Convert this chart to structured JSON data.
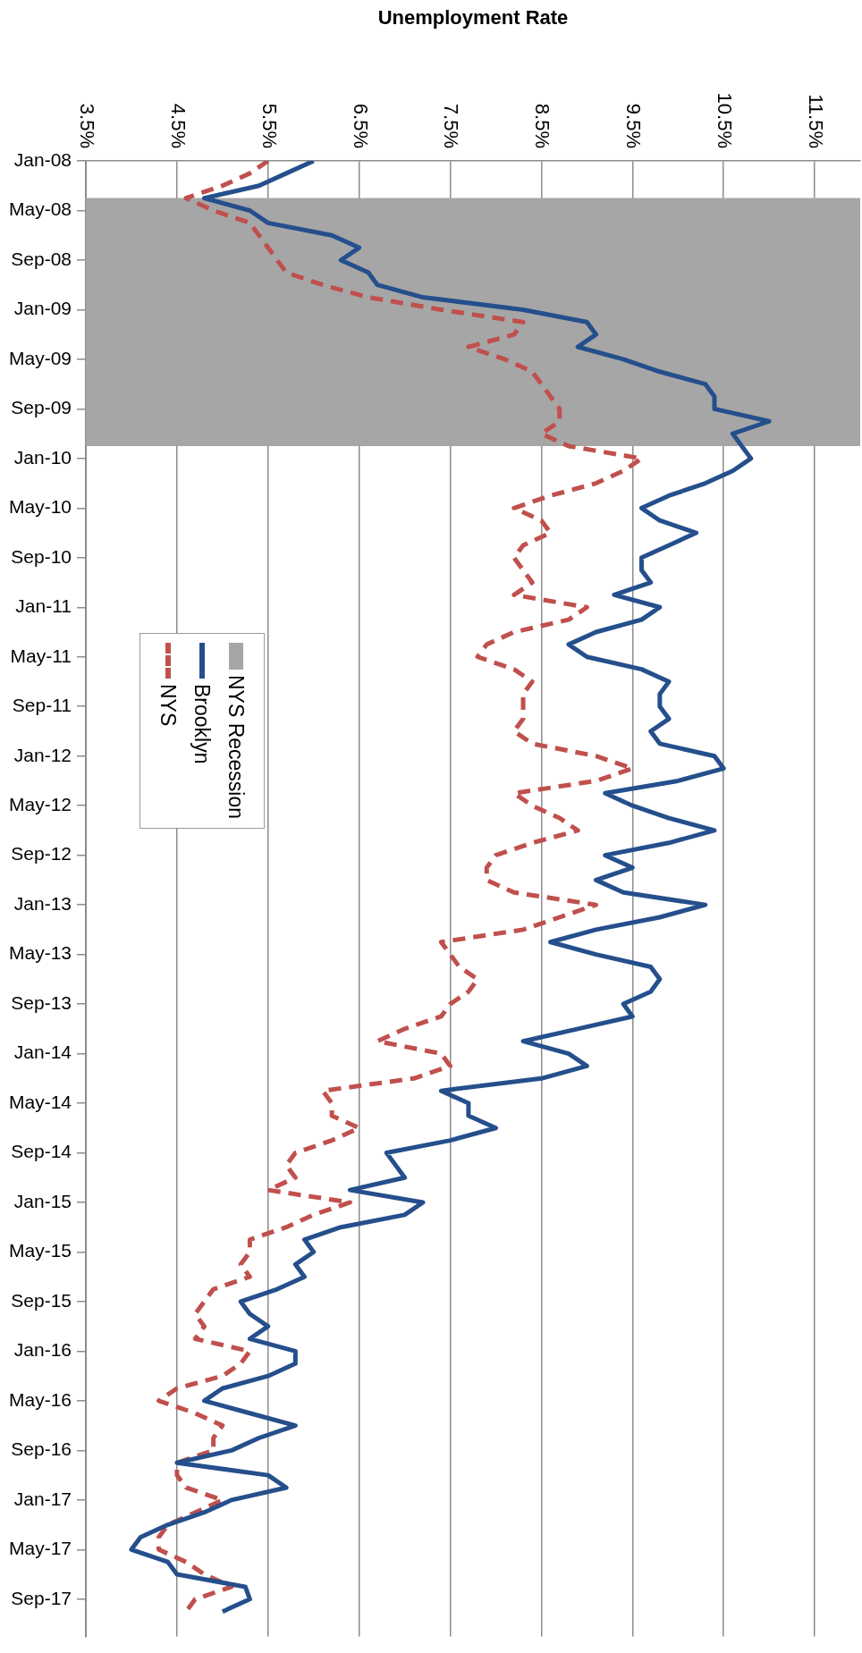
{
  "chart_data": {
    "type": "line",
    "orientation": "horizontal",
    "xlabel": "Unemployment Rate",
    "x": [
      "2008-01",
      "2008-02",
      "2008-03",
      "2008-04",
      "2008-05",
      "2008-06",
      "2008-07",
      "2008-08",
      "2008-09",
      "2008-10",
      "2008-11",
      "2008-12",
      "2009-01",
      "2009-02",
      "2009-03",
      "2009-04",
      "2009-05",
      "2009-06",
      "2009-07",
      "2009-08",
      "2009-09",
      "2009-10",
      "2009-11",
      "2009-12",
      "2010-01",
      "2010-02",
      "2010-03",
      "2010-04",
      "2010-05",
      "2010-06",
      "2010-07",
      "2010-08",
      "2010-09",
      "2010-10",
      "2010-11",
      "2010-12",
      "2011-01",
      "2011-02",
      "2011-03",
      "2011-04",
      "2011-05",
      "2011-06",
      "2011-07",
      "2011-08",
      "2011-09",
      "2011-10",
      "2011-11",
      "2011-12",
      "2012-01",
      "2012-02",
      "2012-03",
      "2012-04",
      "2012-05",
      "2012-06",
      "2012-07",
      "2012-08",
      "2012-09",
      "2012-10",
      "2012-11",
      "2012-12",
      "2013-01",
      "2013-02",
      "2013-03",
      "2013-04",
      "2013-05",
      "2013-06",
      "2013-07",
      "2013-08",
      "2013-09",
      "2013-10",
      "2013-11",
      "2013-12",
      "2014-01",
      "2014-02",
      "2014-03",
      "2014-04",
      "2014-05",
      "2014-06",
      "2014-07",
      "2014-08",
      "2014-09",
      "2014-10",
      "2014-11",
      "2014-12",
      "2015-01",
      "2015-02",
      "2015-03",
      "2015-04",
      "2015-05",
      "2015-06",
      "2015-07",
      "2015-08",
      "2015-09",
      "2015-10",
      "2015-11",
      "2015-12",
      "2016-01",
      "2016-02",
      "2016-03",
      "2016-04",
      "2016-05",
      "2016-06",
      "2016-07",
      "2016-08",
      "2016-09",
      "2016-10",
      "2016-11",
      "2016-12",
      "2017-01",
      "2017-02",
      "2017-03",
      "2017-04",
      "2017-05",
      "2017-06",
      "2017-07",
      "2017-08",
      "2017-09",
      "2017-10"
    ],
    "series": [
      {
        "name": "Brooklyn",
        "color": "#254f8c",
        "line_style": "solid",
        "values": [
          6.0,
          5.7,
          5.4,
          4.8,
          5.3,
          5.5,
          6.2,
          6.5,
          6.3,
          6.6,
          6.7,
          7.2,
          8.3,
          9.0,
          9.1,
          8.9,
          9.4,
          9.8,
          10.3,
          10.4,
          10.4,
          11.0,
          10.6,
          10.7,
          10.8,
          10.6,
          10.3,
          9.9,
          9.6,
          9.8,
          10.2,
          9.9,
          9.6,
          9.6,
          9.7,
          9.3,
          9.8,
          9.6,
          9.1,
          8.8,
          9.0,
          9.6,
          9.9,
          9.8,
          9.8,
          9.9,
          9.7,
          9.8,
          10.4,
          10.5,
          10.0,
          9.2,
          9.5,
          9.9,
          10.4,
          9.9,
          9.2,
          9.5,
          9.1,
          9.4,
          10.3,
          9.8,
          9.1,
          8.6,
          9.1,
          9.7,
          9.8,
          9.7,
          9.4,
          9.5,
          8.9,
          8.3,
          8.8,
          9.0,
          8.5,
          7.4,
          7.7,
          7.7,
          8.0,
          7.5,
          6.8,
          6.9,
          7.0,
          6.4,
          7.2,
          7.0,
          6.3,
          5.9,
          6.0,
          5.8,
          5.9,
          5.6,
          5.2,
          5.3,
          5.5,
          5.3,
          5.8,
          5.8,
          5.5,
          5.0,
          4.8,
          5.3,
          5.8,
          5.4,
          5.1,
          4.5,
          5.5,
          5.7,
          5.1,
          4.8,
          4.4,
          4.1,
          4.0,
          4.4,
          4.5,
          5.25,
          5.3,
          5.0
        ]
      },
      {
        "name": "NYS",
        "color": "#c0504d",
        "line_style": "dashed",
        "values": [
          5.5,
          5.3,
          5.0,
          4.6,
          4.9,
          5.3,
          5.4,
          5.5,
          5.6,
          5.7,
          6.1,
          6.6,
          7.4,
          8.3,
          8.2,
          7.7,
          8.1,
          8.4,
          8.5,
          8.6,
          8.7,
          8.7,
          8.5,
          8.8,
          9.6,
          9.4,
          9.1,
          8.6,
          8.2,
          8.5,
          8.6,
          8.3,
          8.2,
          8.3,
          8.4,
          8.2,
          9.0,
          8.8,
          8.2,
          7.9,
          7.8,
          8.2,
          8.4,
          8.3,
          8.3,
          8.3,
          8.2,
          8.4,
          9.1,
          9.5,
          9.1,
          8.2,
          8.4,
          8.7,
          8.9,
          8.4,
          8.0,
          7.9,
          7.9,
          8.2,
          9.1,
          8.7,
          8.3,
          7.4,
          7.5,
          7.6,
          7.8,
          7.7,
          7.5,
          7.4,
          7.0,
          6.7,
          7.4,
          7.5,
          7.1,
          6.1,
          6.2,
          6.2,
          6.5,
          6.2,
          5.8,
          5.7,
          5.8,
          5.5,
          6.4,
          6.0,
          5.7,
          5.3,
          5.3,
          5.2,
          5.3,
          4.9,
          4.8,
          4.7,
          4.8,
          4.7,
          5.3,
          5.2,
          5.0,
          4.5,
          4.3,
          4.7,
          5.0,
          4.9,
          4.9,
          4.5,
          4.5,
          4.6,
          5.0,
          4.7,
          4.4,
          4.3,
          4.3,
          4.6,
          4.8,
          5.1,
          4.7,
          4.6
        ]
      }
    ],
    "xlim": [
      3.5,
      12.0
    ],
    "xticks": [
      {
        "value": 3.5,
        "label": "3.5%"
      },
      {
        "value": 4.5,
        "label": "4.5%"
      },
      {
        "value": 5.5,
        "label": "5.5%"
      },
      {
        "value": 6.5,
        "label": "6.5%"
      },
      {
        "value": 7.5,
        "label": "7.5%"
      },
      {
        "value": 8.5,
        "label": "8.5%"
      },
      {
        "value": 9.5,
        "label": "9.5%"
      },
      {
        "value": 10.5,
        "label": "10.5%"
      },
      {
        "value": 11.5,
        "label": "11.5%"
      }
    ],
    "ylim": [
      "2017-12",
      "2008-01"
    ],
    "yticks": [
      {
        "value": "2008-01",
        "label": "Jan-08"
      },
      {
        "value": "2008-05",
        "label": "May-08"
      },
      {
        "value": "2008-09",
        "label": "Sep-08"
      },
      {
        "value": "2009-01",
        "label": "Jan-09"
      },
      {
        "value": "2009-05",
        "label": "May-09"
      },
      {
        "value": "2009-09",
        "label": "Sep-09"
      },
      {
        "value": "2010-01",
        "label": "Jan-10"
      },
      {
        "value": "2010-05",
        "label": "May-10"
      },
      {
        "value": "2010-09",
        "label": "Sep-10"
      },
      {
        "value": "2011-01",
        "label": "Jan-11"
      },
      {
        "value": "2011-05",
        "label": "May-11"
      },
      {
        "value": "2011-09",
        "label": "Sep-11"
      },
      {
        "value": "2012-01",
        "label": "Jan-12"
      },
      {
        "value": "2012-05",
        "label": "May-12"
      },
      {
        "value": "2012-09",
        "label": "Sep-12"
      },
      {
        "value": "2013-01",
        "label": "Jan-13"
      },
      {
        "value": "2013-05",
        "label": "May-13"
      },
      {
        "value": "2013-09",
        "label": "Sep-13"
      },
      {
        "value": "2014-01",
        "label": "Jan-14"
      },
      {
        "value": "2014-05",
        "label": "May-14"
      },
      {
        "value": "2014-09",
        "label": "Sep-14"
      },
      {
        "value": "2015-01",
        "label": "Jan-15"
      },
      {
        "value": "2015-05",
        "label": "May-15"
      },
      {
        "value": "2015-09",
        "label": "Sep-15"
      },
      {
        "value": "2016-01",
        "label": "Jan-16"
      },
      {
        "value": "2016-05",
        "label": "May-16"
      },
      {
        "value": "2016-09",
        "label": "Sep-16"
      },
      {
        "value": "2017-01",
        "label": "Jan-17"
      },
      {
        "value": "2017-05",
        "label": "May-17"
      },
      {
        "value": "2017-09",
        "label": "Sep-17"
      }
    ],
    "bands": [
      {
        "axis": "y",
        "from": "2008-04",
        "to": "2009-12",
        "label": "NYS Recession",
        "color": "#a6a6a6"
      }
    ],
    "grid": "x",
    "legend": "left"
  }
}
